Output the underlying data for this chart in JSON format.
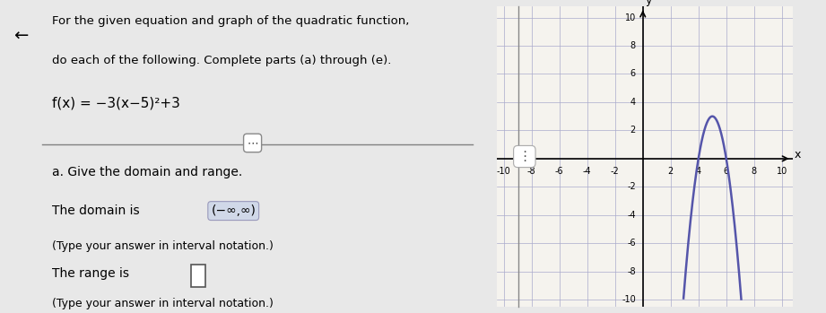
{
  "fig_width": 9.21,
  "fig_height": 3.49,
  "dpi": 100,
  "bg_color": "#e8e8e8",
  "left_panel_bg": "#ffffff",
  "right_panel_bg": "#f5f3ee",
  "title_text1": "For the given equation and graph of the quadratic function,",
  "title_text2": "do each of the following. Complete parts (a) through (e).",
  "equation": "f(x) = −3(x−5)²+3",
  "part_a_label": "a. Give the domain and range.",
  "domain_label": "The domain is",
  "domain_value": "(−∞,∞)",
  "domain_note": "(Type your answer in interval notation.)",
  "range_label": "The range is",
  "range_note": "(Type your answer in interval notation.)",
  "curve_color": "#5555aa",
  "curve_linewidth": 1.8,
  "grid_color": "#aaaacc",
  "axis_color": "#000000",
  "xlim": [
    -10.5,
    10.8
  ],
  "ylim": [
    -10.5,
    10.8
  ],
  "xticks": [
    -10,
    -8,
    -6,
    -4,
    -2,
    2,
    4,
    6,
    8,
    10
  ],
  "yticks": [
    -10,
    -8,
    -6,
    -4,
    -2,
    2,
    4,
    6,
    8,
    10
  ],
  "xlabel": "x",
  "ylabel": "y",
  "tick_fontsize": 7,
  "axis_label_fontsize": 9
}
